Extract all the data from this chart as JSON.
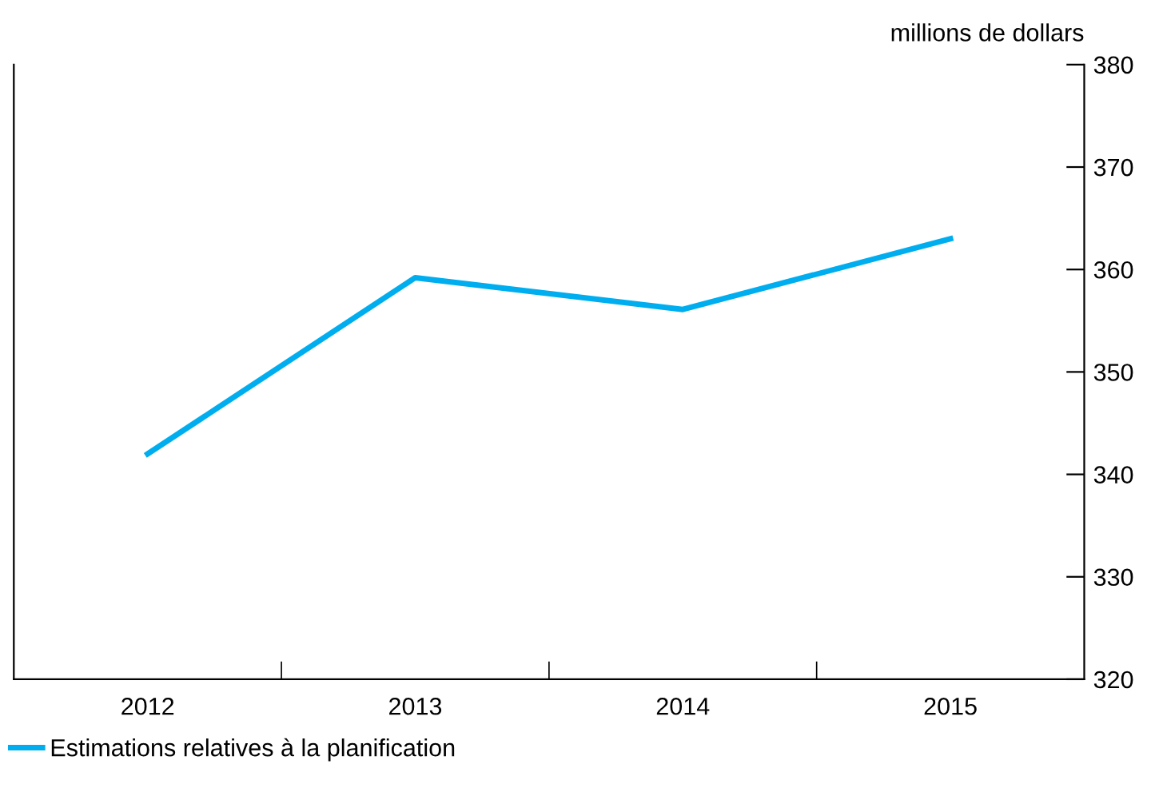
{
  "chart_data": {
    "type": "line",
    "ylabel": "millions de dollars",
    "categories": [
      "2012",
      "2013",
      "2014",
      "2015"
    ],
    "series": [
      {
        "name": "Estimations relatives à la planification",
        "color": "#00aeef",
        "values": [
          342,
          359.2,
          356.1,
          363
        ]
      }
    ],
    "ylim": [
      320,
      380
    ],
    "yticks": [
      320,
      330,
      340,
      350,
      360,
      370,
      380
    ],
    "legend": "bottom left",
    "grid": false,
    "line_style": "solid",
    "marker": "none"
  }
}
